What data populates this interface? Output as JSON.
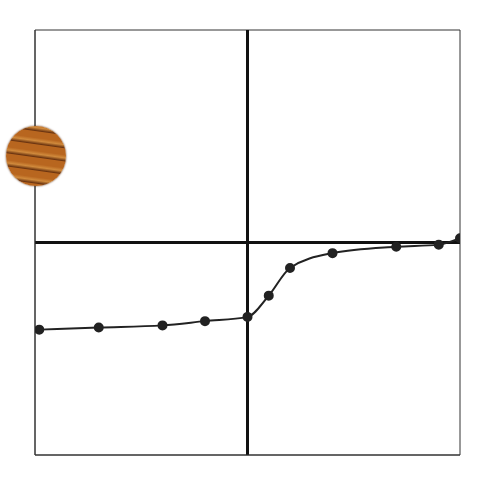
{
  "chart_data": {
    "type": "line",
    "x": [
      -9.8,
      -7,
      -4,
      -2,
      0,
      1,
      2,
      4,
      7,
      9,
      10
    ],
    "values": [
      -4.1,
      -4,
      -3.9,
      -3.7,
      -3.5,
      -2.5,
      -1.2,
      -0.5,
      -0.2,
      -0.1,
      0.2
    ],
    "xlim": [
      -10,
      10
    ],
    "ylim": [
      -10,
      10
    ],
    "xticks": [
      -10,
      -9,
      -8,
      -7,
      -6,
      -5,
      -4,
      -3,
      -2,
      -1,
      0,
      1,
      2,
      3,
      4,
      5,
      6,
      7,
      8,
      9,
      10
    ],
    "yticks": [
      -10,
      -9,
      -8,
      -7,
      -6,
      -5,
      -4,
      -3,
      -2,
      -1,
      0,
      1,
      2,
      3,
      4,
      5,
      6,
      7,
      8,
      9,
      10
    ],
    "grid": true,
    "tick_labels": false,
    "color": "#222222",
    "marker": "circle"
  }
}
